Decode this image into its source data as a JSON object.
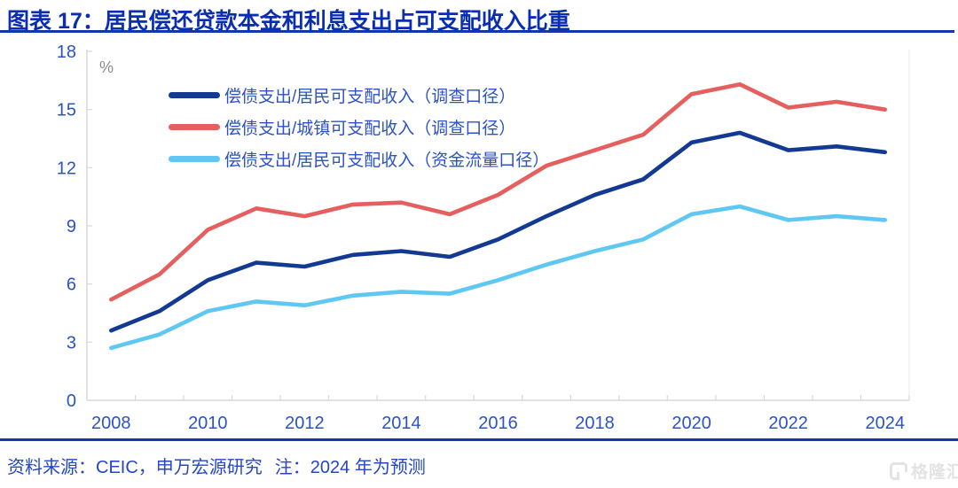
{
  "title": "图表 17：居民偿还贷款本金和利息支出占可支配收入比重",
  "footer": {
    "source": "资料来源：CEIC，申万宏源研究",
    "note": "注：2024 年为预测"
  },
  "watermark": {
    "text": "格隆汇"
  },
  "colors": {
    "title_blue": "#0a2db2",
    "rule_blue": "#1535ad",
    "axis_label_blue": "#2b52c8",
    "axis_line_gray": "#d9d9d9",
    "unit_gray": "#8c8c8c",
    "watermark_gray": "#e3e3e3"
  },
  "chart_data": {
    "type": "line",
    "title": "居民偿还贷款本金和利息支出占可支配收入比重",
    "ylabel_unit": "%",
    "ylim": [
      0,
      18
    ],
    "y_ticks": [
      0,
      3,
      6,
      9,
      12,
      15,
      18
    ],
    "grid": false,
    "legend_position": "top-left-inside",
    "categories": [
      "2008",
      "2009",
      "2010",
      "2011",
      "2012",
      "2013",
      "2014",
      "2015",
      "2016",
      "2017",
      "2018",
      "2019",
      "2020",
      "2021",
      "2022",
      "2023",
      "2024"
    ],
    "x_tick_labels": [
      "2008",
      "2010",
      "2012",
      "2014",
      "2016",
      "2018",
      "2020",
      "2022",
      "2024"
    ],
    "series": [
      {
        "name": "偿债支出/居民可支配收入（调查口径）",
        "color": "#123a93",
        "values": [
          3.6,
          4.6,
          6.2,
          7.1,
          6.9,
          7.5,
          7.7,
          7.4,
          8.3,
          9.5,
          10.6,
          11.4,
          13.3,
          13.8,
          12.9,
          13.1,
          12.8
        ]
      },
      {
        "name": "偿债支出/城镇可支配收入（调查口径）",
        "color": "#e65f5f",
        "values": [
          5.2,
          6.5,
          8.8,
          9.9,
          9.5,
          10.1,
          10.2,
          9.6,
          10.6,
          12.1,
          12.9,
          13.7,
          15.8,
          16.3,
          15.1,
          15.4,
          15.0
        ]
      },
      {
        "name": "偿债支出/居民可支配收入（资金流量口径）",
        "color": "#5ec8f2",
        "values": [
          2.7,
          3.4,
          4.6,
          5.1,
          4.9,
          5.4,
          5.6,
          5.5,
          6.2,
          7.0,
          7.7,
          8.3,
          9.6,
          10.0,
          9.3,
          9.5,
          9.3
        ]
      }
    ]
  }
}
